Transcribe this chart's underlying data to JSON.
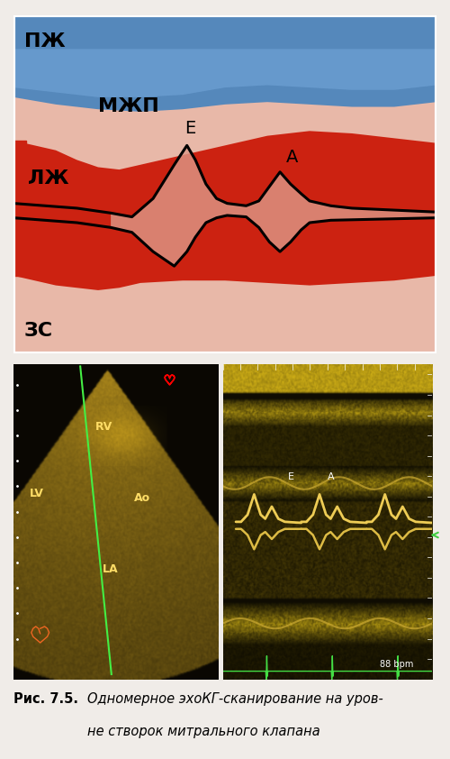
{
  "caption_bold": "Рис. 7.5.",
  "caption_italic": " Одномерное эхоКГ-сканирование на уров-\nне створок митрального клапана",
  "top_diagram": {
    "pzh_label": "ПЖ",
    "mzhp_label": "МЖП",
    "lzh_label": "ЛЖ",
    "zs_label": "ЗС",
    "E_label": "Е",
    "A_label": "А",
    "bg_color": "#e8c0b0",
    "blue_top": "#4466aa",
    "blue_mid": "#6699cc",
    "red_bright": "#dd2211",
    "red_mid": "#cc6655",
    "pink_band": "#e8b8a8"
  },
  "background_color": "#f0ece8"
}
